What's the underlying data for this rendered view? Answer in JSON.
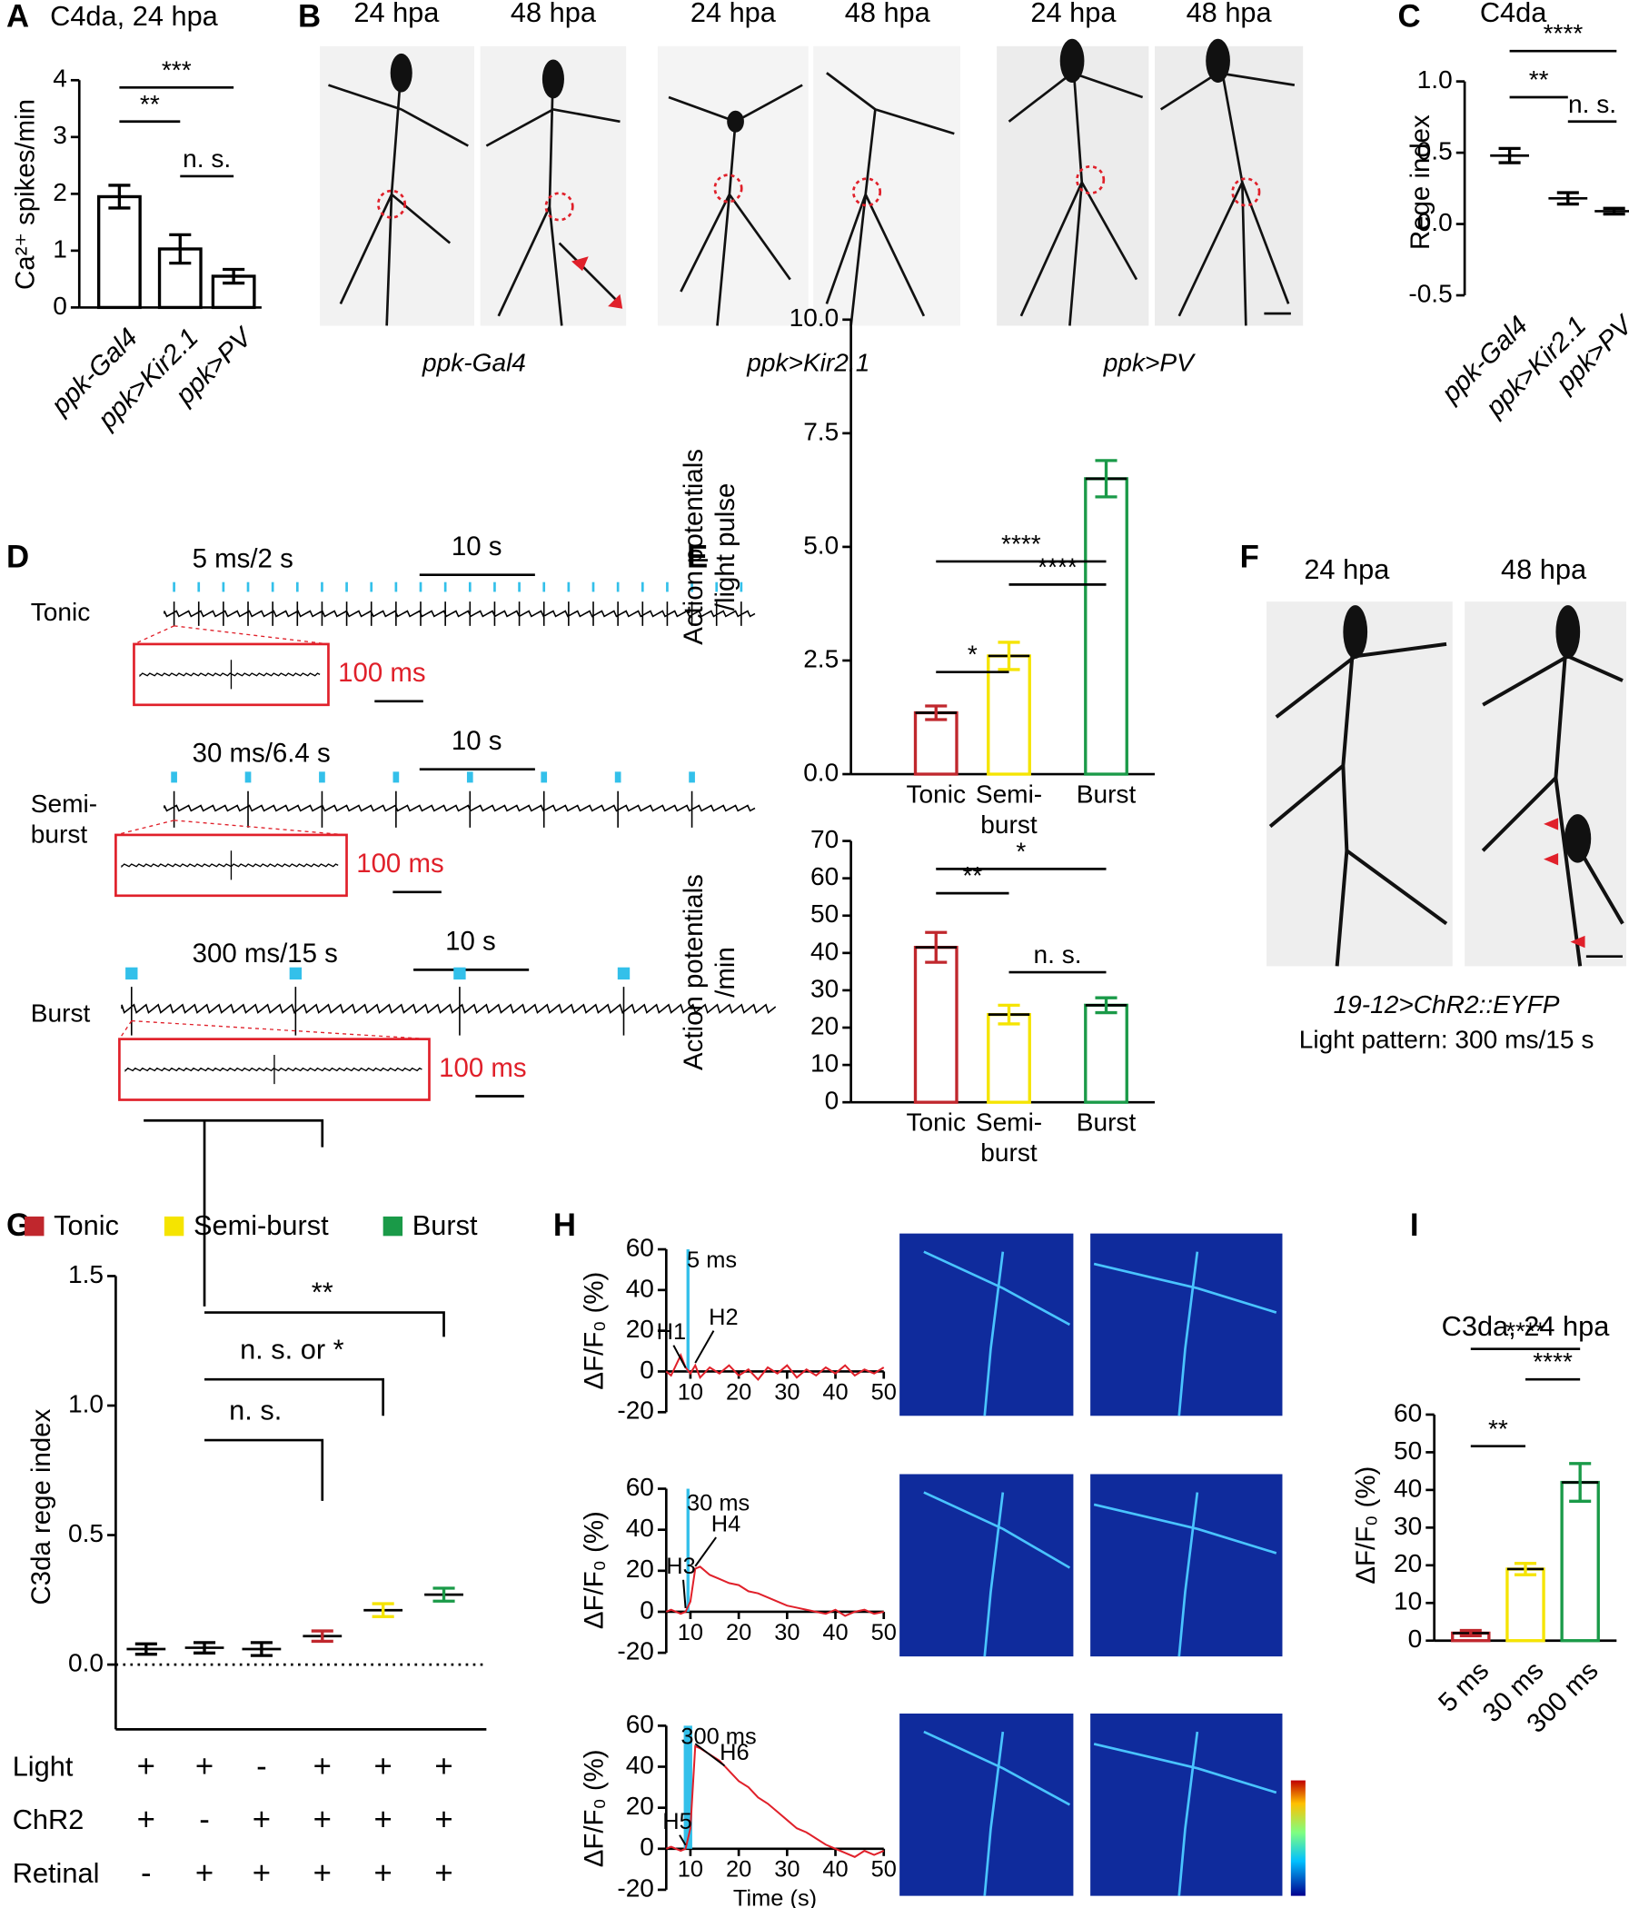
{
  "labels": [
    "A",
    "B",
    "C",
    "D",
    "E",
    "F",
    "G",
    "H",
    "I"
  ],
  "panel_b": {
    "image_labels": [
      "24 hpa",
      "48 hpa",
      "24 hpa",
      "48 hpa",
      "24 hpa",
      "48 hpa"
    ],
    "genotypes": [
      "ppk-Gal4",
      "ppk>Kir2.1",
      "ppk>PV"
    ]
  },
  "panel_d": {
    "rows": [
      {
        "name": "Tonic",
        "pattern": "5 ms/2 s",
        "scale": "10 s",
        "inset_scale": "100 ms"
      },
      {
        "name": [
          "Semi-",
          "burst"
        ],
        "pattern": "30 ms/6.4 s",
        "scale": "10 s",
        "inset_scale": "100 ms"
      },
      {
        "name": "Burst",
        "pattern": "300 ms/15 s",
        "scale": "10 s",
        "inset_scale": "100 ms"
      }
    ]
  },
  "panel_f": {
    "image_labels": [
      "24 hpa",
      "48 hpa"
    ],
    "genotype": "19-12>ChR2::EYFP",
    "light_pattern": "Light pattern: 300 ms/15 s"
  },
  "chart_data": [
    {
      "type": "bar",
      "title": "C4da, 24 hpa",
      "ylabel": "Ca²⁺ spikes/min",
      "categories": [
        "ppk-Gal4",
        "ppk>Kir2.1",
        "ppk>PV"
      ],
      "values": [
        1.95,
        1.03,
        0.55
      ],
      "errors": [
        0.2,
        0.25,
        0.12
      ],
      "color": "#000000",
      "fill": "#ffffff",
      "ylim": [
        0,
        4
      ],
      "yticks": [
        0,
        1,
        2,
        3,
        4
      ],
      "annotations": [
        "**",
        "***",
        "n. s."
      ]
    },
    {
      "type": "mean",
      "title": "C4da",
      "ylabel": "Rege index",
      "categories": [
        "ppk-Gal4",
        "ppk>Kir2.1",
        "ppk>PV"
      ],
      "values": [
        0.48,
        0.18,
        0.09
      ],
      "errors": [
        0.05,
        0.04,
        0.02
      ],
      "color": "#000000",
      "ylim": [
        -0.5,
        1.0
      ],
      "yticks": [
        -0.5,
        {
          "value": 0,
          "label": "0.0"
        },
        0.5,
        {
          "value": 1,
          "label": "1.0"
        }
      ],
      "annotations": [
        "**",
        "****",
        "n. s."
      ]
    },
    {
      "type": "bar",
      "ylabel": [
        "Action potentials",
        "/light pulse"
      ],
      "categories": [
        "Tonic",
        [
          "Semi-",
          "burst"
        ],
        "Burst"
      ],
      "values": [
        1.35,
        2.6,
        6.5
      ],
      "errors": [
        0.15,
        0.3,
        0.4
      ],
      "colors": [
        "#c0272d",
        "#f5e400",
        "#1a9a48"
      ],
      "fill": "#ffffff",
      "ylim": [
        0,
        10
      ],
      "yticks": [
        {
          "value": 0,
          "label": "0.0"
        },
        2.5,
        {
          "value": 5,
          "label": "5.0"
        },
        7.5,
        {
          "value": 10,
          "label": "10.0"
        }
      ],
      "annotations": [
        "*",
        "****",
        "****"
      ]
    },
    {
      "type": "bar",
      "ylabel": [
        "Action potentials",
        "/min"
      ],
      "categories": [
        "Tonic",
        [
          "Semi-",
          "burst"
        ],
        "Burst"
      ],
      "values": [
        41.5,
        23.5,
        26
      ],
      "errors": [
        4,
        2.5,
        2
      ],
      "colors": [
        "#c0272d",
        "#f5e400",
        "#1a9a48"
      ],
      "fill": "#ffffff",
      "ylim": [
        0,
        70
      ],
      "yticks": [
        0,
        10,
        20,
        30,
        40,
        50,
        60,
        70
      ],
      "annotations": [
        "**",
        "*",
        "n. s."
      ]
    },
    {
      "type": "mean",
      "ylabel": "C3da rege index",
      "legend": [
        {
          "name": "Tonic",
          "color": "#c0272d"
        },
        {
          "name": "Semi-burst",
          "color": "#f5e400"
        },
        {
          "name": "Burst",
          "color": "#1a9a48"
        }
      ],
      "values": [
        0.06,
        0.065,
        0.06,
        0.11,
        0.21,
        0.27
      ],
      "errors": [
        0.02,
        0.02,
        0.025,
        0.02,
        0.025,
        0.025
      ],
      "colors": [
        "#000000",
        "#000000",
        "#000000",
        "#c0272d",
        "#f5e400",
        "#1a9a48"
      ],
      "ylim": [
        -0.25,
        1.5
      ],
      "yticks": [
        {
          "value": 0,
          "label": "0.0"
        },
        0.5,
        {
          "value": 1,
          "label": "1.0"
        },
        1.5
      ],
      "annotations": [
        "**",
        "n. s. or *",
        "n. s."
      ],
      "conditions": [
        {
          "name": "Light",
          "marks": [
            "+",
            "+",
            "-",
            "+",
            "+",
            "+"
          ]
        },
        {
          "name": "ChR2",
          "marks": [
            "+",
            "-",
            "+",
            "+",
            "+",
            "+"
          ]
        },
        {
          "name": "Retinal",
          "marks": [
            "-",
            "+",
            "+",
            "+",
            "+",
            "+"
          ]
        }
      ]
    },
    {
      "type": "line",
      "ylabel": "ΔF/F₀ (%)",
      "color": "#e0202a",
      "x": [
        5,
        6,
        8,
        9,
        10,
        11,
        12,
        14,
        16,
        18,
        20,
        22,
        24,
        26,
        28,
        30,
        32,
        34,
        36,
        38,
        40,
        42,
        44,
        46,
        48,
        50
      ],
      "values": [
        0,
        -2,
        8,
        2,
        -1,
        3,
        -3,
        2,
        -1,
        3,
        -2,
        1,
        -4,
        2,
        -1,
        3,
        -3,
        1,
        -2,
        2,
        -1,
        3,
        -2,
        1,
        -1,
        2
      ],
      "xlim": [
        5,
        50
      ],
      "xticks": [
        10,
        20,
        30,
        40,
        50
      ],
      "ylim": [
        -20,
        60
      ],
      "yticks": [
        -20,
        0,
        20,
        40,
        60
      ],
      "annotations": [
        "5 ms",
        "H1",
        "H2"
      ]
    },
    {
      "type": "line",
      "ylabel": "ΔF/F₀ (%)",
      "color": "#e0202a",
      "x": [
        5,
        6,
        8,
        9,
        10,
        11,
        12,
        14,
        16,
        18,
        20,
        22,
        24,
        26,
        28,
        30,
        32,
        34,
        36,
        38,
        40,
        42,
        44,
        46,
        48,
        50
      ],
      "values": [
        0,
        1,
        -1,
        0,
        5,
        21,
        22,
        18,
        16,
        14,
        13,
        10,
        9,
        7,
        5,
        3,
        2,
        1,
        0,
        -1,
        1,
        -2,
        0,
        1,
        -1,
        0
      ],
      "xlim": [
        5,
        50
      ],
      "xticks": [
        10,
        20,
        30,
        40,
        50
      ],
      "ylim": [
        -20,
        60
      ],
      "yticks": [
        -20,
        0,
        20,
        40,
        60
      ],
      "annotations": [
        "30 ms",
        "H3",
        "H4"
      ]
    },
    {
      "type": "line",
      "ylabel": "ΔF/F₀ (%)",
      "xlabel": "Time (s)",
      "color": "#e0202a",
      "x": [
        5,
        6,
        8,
        9,
        10,
        11,
        12,
        14,
        16,
        18,
        20,
        22,
        24,
        26,
        28,
        30,
        32,
        34,
        36,
        38,
        40,
        42,
        44,
        46,
        48,
        50
      ],
      "values": [
        0,
        1,
        -1,
        0,
        10,
        50,
        49,
        46,
        43,
        38,
        33,
        30,
        25,
        22,
        18,
        14,
        10,
        8,
        5,
        2,
        0,
        -2,
        -4,
        -1,
        -3,
        -1
      ],
      "xlim": [
        5,
        50
      ],
      "xticks": [
        10,
        20,
        30,
        40,
        50
      ],
      "ylim": [
        -20,
        60
      ],
      "yticks": [
        -20,
        0,
        20,
        40,
        60
      ],
      "annotations": [
        "300 ms",
        "H5",
        "H6"
      ]
    },
    {
      "type": "bar",
      "title": "C3da, 24 hpa",
      "ylabel": "ΔF/F₀ (%)",
      "categories": [
        "5 ms",
        "30 ms",
        "300 ms"
      ],
      "values": [
        2,
        19,
        42
      ],
      "errors": [
        0.7,
        1.5,
        5
      ],
      "colors": [
        "#c0272d",
        "#f5e400",
        "#1a9a48"
      ],
      "fill": "#ffffff",
      "ylim": [
        0,
        60
      ],
      "yticks": [
        0,
        10,
        20,
        30,
        40,
        50,
        60
      ],
      "annotations": [
        "**",
        "****",
        "****"
      ]
    }
  ]
}
